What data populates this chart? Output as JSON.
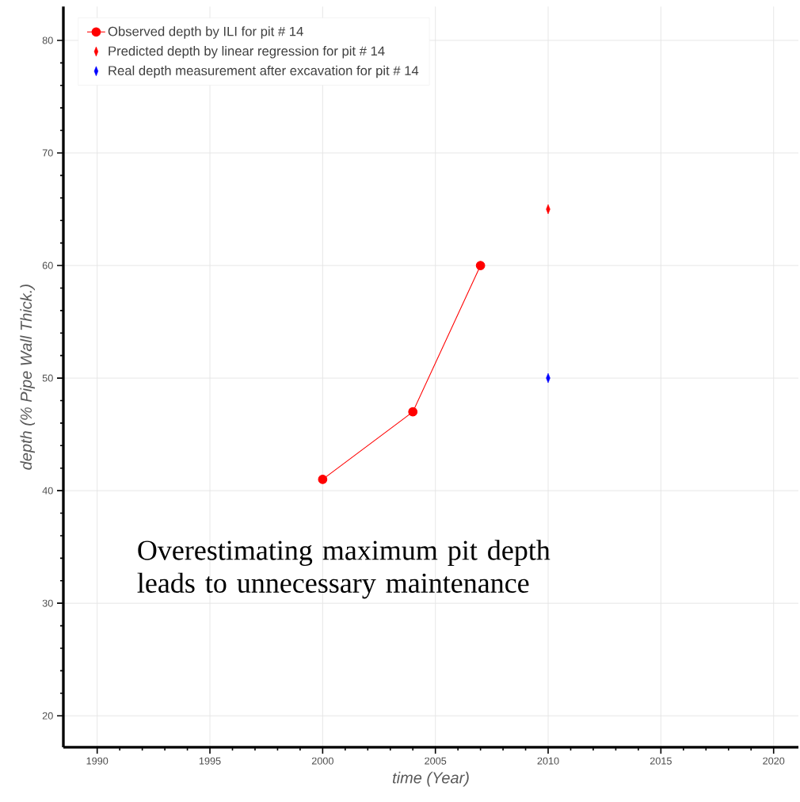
{
  "chart_data": {
    "type": "scatter",
    "xlabel": "time (Year)",
    "ylabel": "depth (% Pipe Wall Thick.)",
    "series": [
      {
        "name": "Observed depth by ILI for pit # 14",
        "type": "line",
        "color": "#ff0000",
        "marker": "circle",
        "x": [
          2000,
          2004,
          2007
        ],
        "values": [
          41,
          47,
          60
        ]
      },
      {
        "name": "Predicted depth by linear regression for pit # 14",
        "color": "#ff0000",
        "marker": "diamond",
        "x": [
          2010
        ],
        "values": [
          65
        ]
      },
      {
        "name": "Real depth measurement after excavation for pit # 14",
        "color": "#0000ff",
        "marker": "diamond",
        "x": [
          2010
        ],
        "values": [
          50
        ]
      }
    ],
    "xlim": [
      1988.5,
      2021.1
    ],
    "ylim": [
      17.2,
      83
    ],
    "xticks": [
      1990,
      1995,
      2000,
      2005,
      2010,
      2015,
      2020
    ],
    "yticks": [
      20,
      30,
      40,
      50,
      60,
      70,
      80
    ],
    "grid": true,
    "legend": "top left",
    "annotations": [
      "Overestimating maximum pit depth leads to unnecessary maintenance"
    ]
  }
}
